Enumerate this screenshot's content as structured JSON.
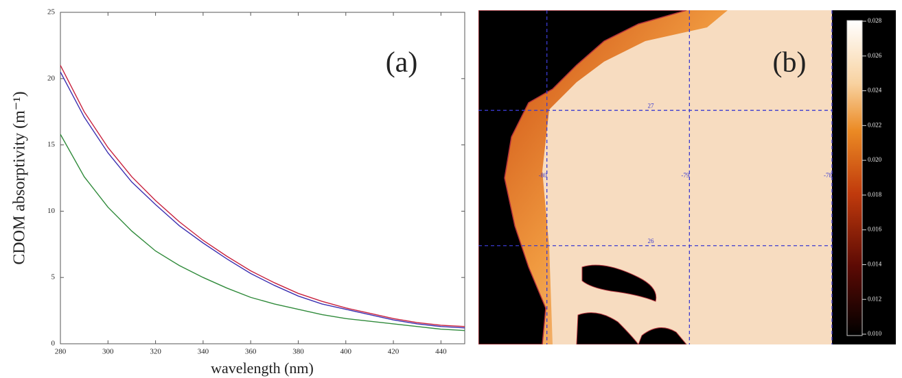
{
  "chart_data": [
    {
      "type": "line",
      "annotation": "(a)",
      "xlabel": "wavelength (nm)",
      "ylabel": "CDOM absorptivity (m⁻¹)",
      "x": [
        280,
        290,
        300,
        310,
        320,
        330,
        340,
        350,
        360,
        370,
        380,
        390,
        400,
        410,
        420,
        430,
        440,
        450
      ],
      "series": [
        {
          "color": "#c8203c",
          "values": [
            21,
            17.5,
            14.8,
            12.6,
            10.8,
            9.2,
            7.8,
            6.6,
            5.5,
            4.6,
            3.8,
            3.2,
            2.7,
            2.3,
            1.9,
            1.6,
            1.4,
            1.3
          ]
        },
        {
          "color": "#3a2fb0",
          "values": [
            20.5,
            17.1,
            14.4,
            12.2,
            10.5,
            8.9,
            7.6,
            6.4,
            5.3,
            4.4,
            3.6,
            3.0,
            2.6,
            2.2,
            1.8,
            1.5,
            1.3,
            1.2
          ]
        },
        {
          "color": "#2f8a3a",
          "values": [
            15.8,
            12.6,
            10.3,
            8.5,
            7.0,
            5.9,
            5.0,
            4.2,
            3.5,
            3.0,
            2.6,
            2.2,
            1.9,
            1.7,
            1.5,
            1.3,
            1.1,
            1.0
          ]
        }
      ],
      "xlim": [
        280,
        450
      ],
      "xticks": [
        280,
        300,
        320,
        340,
        360,
        380,
        400,
        420,
        440
      ],
      "ylim": [
        0,
        25
      ],
      "yticks": [
        0,
        5,
        10,
        15,
        20,
        25
      ]
    },
    {
      "type": "map",
      "annotation": "(b)",
      "xlim": [
        -80.48,
        -78.0
      ],
      "xticks": [
        -80,
        -79,
        -78
      ],
      "ylim": [
        25.27,
        27.74
      ],
      "yticks": [
        27,
        26
      ],
      "colorbar": {
        "ylim": [
          0.01,
          0.028
        ],
        "yticks": [
          0.028,
          0.026,
          0.024,
          0.022,
          {
            "value": 0.02,
            "label": "0.020"
          },
          0.018,
          0.016,
          0.014,
          0.012,
          {
            "value": 0.01,
            "label": "0.010"
          }
        ]
      }
    }
  ]
}
